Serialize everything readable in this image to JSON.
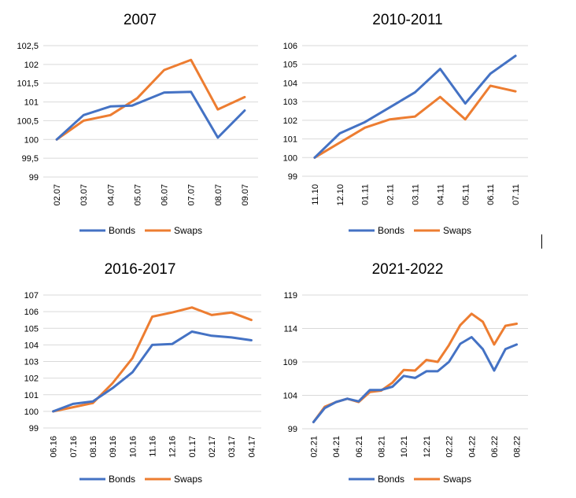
{
  "colors": {
    "bonds": "#4472C4",
    "swaps": "#ED7D31",
    "grid": "#D9D9D9",
    "text": "#000000"
  },
  "chart_data": [
    {
      "type": "line",
      "title": "2007",
      "categories": [
        "02.07",
        "03.07",
        "04.07",
        "05.07",
        "06.07",
        "07.07",
        "08.07",
        "09.07"
      ],
      "y_ticks": [
        "99",
        "99,5",
        "100",
        "100,5",
        "101",
        "101,5",
        "102",
        "102,5"
      ],
      "ylim": [
        99,
        102.5
      ],
      "x_tick_labels": [
        "02.07",
        "03.07",
        "04.07",
        "05.07",
        "06.07",
        "07.07",
        "08.07",
        "09.07"
      ],
      "series": [
        {
          "name": "Bonds",
          "x": [
            0,
            1,
            2,
            2.8,
            4,
            5,
            6,
            7
          ],
          "values": [
            100.0,
            100.65,
            100.88,
            100.9,
            101.25,
            101.27,
            100.05,
            100.77
          ]
        },
        {
          "name": "Swaps",
          "x": [
            0,
            1,
            2,
            3,
            4,
            5,
            6,
            7
          ],
          "values": [
            100.0,
            100.5,
            100.65,
            101.1,
            101.85,
            102.12,
            100.8,
            101.13
          ]
        }
      ],
      "legend": "bottom",
      "grid": true
    },
    {
      "type": "line",
      "title": "2010-2011",
      "categories": [
        "11.10",
        "12.10",
        "01.11",
        "02.11",
        "03.11",
        "04.11",
        "05.11",
        "06.11",
        "07.11"
      ],
      "y_ticks": [
        "99",
        "100",
        "101",
        "102",
        "103",
        "104",
        "105",
        "106"
      ],
      "ylim": [
        99,
        106
      ],
      "x_tick_labels": [
        "11.10",
        "12.10",
        "01.11",
        "02.11",
        "03.11",
        "04.11",
        "05.11",
        "06.11",
        "07.11"
      ],
      "series": [
        {
          "name": "Bonds",
          "x": [
            0,
            1,
            2,
            3,
            4,
            5,
            6,
            7,
            8
          ],
          "values": [
            100.0,
            101.3,
            101.9,
            102.7,
            103.5,
            104.75,
            102.9,
            104.5,
            105.45
          ]
        },
        {
          "name": "Swaps",
          "x": [
            0,
            1,
            2,
            3,
            4,
            5,
            6,
            7,
            8
          ],
          "values": [
            100.0,
            100.8,
            101.6,
            102.05,
            102.2,
            103.25,
            102.05,
            103.85,
            103.55
          ]
        }
      ],
      "legend": "bottom",
      "grid": true
    },
    {
      "type": "line",
      "title": "2016-2017",
      "categories": [
        "06.16",
        "07.16",
        "08.16",
        "09.16",
        "10.16",
        "11.16",
        "12.16",
        "01.17",
        "02.17",
        "03.17",
        "04.17"
      ],
      "y_ticks": [
        "99",
        "100",
        "101",
        "102",
        "103",
        "104",
        "105",
        "106",
        "107"
      ],
      "ylim": [
        99,
        107
      ],
      "x_tick_labels": [
        "06.16",
        "07.16",
        "08.16",
        "09.16",
        "10.16",
        "11.16",
        "12.16",
        "01.17",
        "02.17",
        "03.17",
        "04.17"
      ],
      "series": [
        {
          "name": "Bonds",
          "x": [
            0,
            1,
            2,
            3,
            4,
            5,
            6,
            7,
            8,
            9,
            10
          ],
          "values": [
            100.0,
            100.45,
            100.6,
            101.4,
            102.35,
            104.0,
            104.05,
            104.8,
            104.55,
            104.45,
            104.28
          ]
        },
        {
          "name": "Swaps",
          "x": [
            0,
            1,
            2,
            3,
            4,
            5,
            6,
            7,
            8,
            9,
            10
          ],
          "values": [
            100.0,
            100.25,
            100.5,
            101.7,
            103.2,
            105.7,
            105.95,
            106.25,
            105.8,
            105.95,
            105.5
          ]
        }
      ],
      "legend": "bottom",
      "grid": true
    },
    {
      "type": "line",
      "title": "2021-2022",
      "categories": [
        "02.21",
        "04.21",
        "06.21",
        "08.21",
        "10.21",
        "12.21",
        "02.22",
        "04.22",
        "06.22",
        "08.22"
      ],
      "y_ticks": [
        "99",
        "104",
        "109",
        "114",
        "119"
      ],
      "ylim": [
        99,
        119
      ],
      "x_tick_labels": [
        "02.21",
        "04.21",
        "06.21",
        "08.21",
        "10.21",
        "12.21",
        "02.22",
        "04.22",
        "06.22",
        "08.22"
      ],
      "series": [
        {
          "name": "Bonds",
          "x": [
            0,
            0.5,
            1,
            1.5,
            2,
            2.5,
            3,
            3.5,
            4,
            4.5,
            5,
            5.5,
            6,
            6.5,
            7,
            7.5,
            8,
            8.5,
            9
          ],
          "values": [
            100.0,
            102.1,
            103.0,
            103.5,
            103.1,
            104.8,
            104.8,
            105.3,
            106.9,
            106.6,
            107.6,
            107.6,
            109.0,
            111.7,
            112.7,
            110.9,
            107.7,
            110.9,
            111.6
          ]
        },
        {
          "name": "Swaps",
          "x": [
            0,
            0.5,
            1,
            1.5,
            2,
            2.5,
            3,
            3.5,
            4,
            4.5,
            5,
            5.5,
            6,
            6.5,
            7,
            7.5,
            8,
            8.5,
            9
          ],
          "values": [
            100.0,
            102.3,
            103.0,
            103.5,
            103.0,
            104.5,
            104.7,
            105.9,
            107.8,
            107.7,
            109.3,
            109.0,
            111.5,
            114.5,
            116.2,
            115.0,
            111.6,
            114.4,
            114.7
          ]
        }
      ],
      "legend": "bottom",
      "grid": true
    }
  ]
}
